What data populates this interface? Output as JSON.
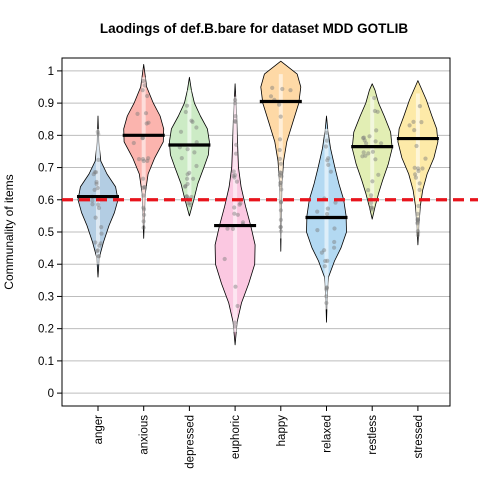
{
  "chart_data": {
    "type": "violin",
    "title": "Laodings of def.B.bare for dataset MDD GOTLIB",
    "xlabel": "",
    "ylabel": "Communality of items",
    "ylim": [
      -0.04,
      1.04
    ],
    "yticks": [
      0,
      0.1,
      0.2,
      0.3,
      0.4,
      0.5,
      0.6,
      0.7,
      0.8,
      0.9,
      1
    ],
    "ytick_labels": [
      "0",
      "0.1",
      "0.2",
      "0.3",
      "0.4",
      "0.5",
      "0.6",
      "0.7",
      "0.8",
      "0.9",
      "1"
    ],
    "grid": "horizontal",
    "reference_line": {
      "y": 0.6,
      "color": "#e8141c",
      "style": "dashed"
    },
    "categories": [
      "anger",
      "anxious",
      "depressed",
      "euphoric",
      "happy",
      "relaxed",
      "restless",
      "stressed"
    ],
    "series": [
      {
        "name": "anger",
        "fill": "#b3cde3",
        "mean": 0.61,
        "min": 0.36,
        "max": 0.86,
        "profile": [
          [
            0.36,
            0
          ],
          [
            0.42,
            0.06
          ],
          [
            0.47,
            0.28
          ],
          [
            0.52,
            0.55
          ],
          [
            0.56,
            0.82
          ],
          [
            0.6,
            1.0
          ],
          [
            0.64,
            0.88
          ],
          [
            0.68,
            0.45
          ],
          [
            0.72,
            0.14
          ],
          [
            0.78,
            0.04
          ],
          [
            0.86,
            0
          ]
        ]
      },
      {
        "name": "anxious",
        "fill": "#fbb4ae",
        "mean": 0.8,
        "min": 0.48,
        "max": 1.02,
        "profile": [
          [
            0.48,
            0
          ],
          [
            0.55,
            0.04
          ],
          [
            0.62,
            0.08
          ],
          [
            0.68,
            0.22
          ],
          [
            0.73,
            0.55
          ],
          [
            0.78,
            0.98
          ],
          [
            0.82,
            1.0
          ],
          [
            0.86,
            0.82
          ],
          [
            0.9,
            0.48
          ],
          [
            0.95,
            0.15
          ],
          [
            1.02,
            0
          ]
        ]
      },
      {
        "name": "depressed",
        "fill": "#ccebc5",
        "mean": 0.77,
        "min": 0.55,
        "max": 0.98,
        "profile": [
          [
            0.55,
            0
          ],
          [
            0.6,
            0.22
          ],
          [
            0.65,
            0.42
          ],
          [
            0.7,
            0.72
          ],
          [
            0.74,
            0.95
          ],
          [
            0.78,
            1.0
          ],
          [
            0.82,
            0.9
          ],
          [
            0.86,
            0.55
          ],
          [
            0.9,
            0.25
          ],
          [
            0.94,
            0.1
          ],
          [
            0.98,
            0
          ]
        ]
      },
      {
        "name": "euphoric",
        "fill": "#fbc8e1",
        "mean": 0.52,
        "min": 0.15,
        "max": 0.96,
        "profile": [
          [
            0.15,
            0
          ],
          [
            0.22,
            0.1
          ],
          [
            0.28,
            0.32
          ],
          [
            0.34,
            0.68
          ],
          [
            0.4,
            0.98
          ],
          [
            0.46,
            1.0
          ],
          [
            0.52,
            0.78
          ],
          [
            0.58,
            0.52
          ],
          [
            0.64,
            0.3
          ],
          [
            0.7,
            0.17
          ],
          [
            0.78,
            0.12
          ],
          [
            0.86,
            0.08
          ],
          [
            0.96,
            0
          ]
        ]
      },
      {
        "name": "happy",
        "fill": "#fed9a6",
        "mean": 0.905,
        "min": 0.44,
        "max": 1.03,
        "profile": [
          [
            0.44,
            0
          ],
          [
            0.55,
            0.03
          ],
          [
            0.65,
            0.06
          ],
          [
            0.72,
            0.14
          ],
          [
            0.78,
            0.3
          ],
          [
            0.84,
            0.6
          ],
          [
            0.9,
            0.9
          ],
          [
            0.95,
            1.0
          ],
          [
            0.99,
            0.82
          ],
          [
            1.03,
            0
          ]
        ]
      },
      {
        "name": "relaxed",
        "fill": "#b3d9f2",
        "mean": 0.545,
        "min": 0.22,
        "max": 0.86,
        "profile": [
          [
            0.22,
            0
          ],
          [
            0.3,
            0.04
          ],
          [
            0.36,
            0.1
          ],
          [
            0.41,
            0.4
          ],
          [
            0.45,
            0.72
          ],
          [
            0.5,
            1.0
          ],
          [
            0.55,
            0.98
          ],
          [
            0.6,
            0.86
          ],
          [
            0.65,
            0.62
          ],
          [
            0.7,
            0.42
          ],
          [
            0.76,
            0.2
          ],
          [
            0.82,
            0.06
          ],
          [
            0.86,
            0
          ]
        ]
      },
      {
        "name": "restless",
        "fill": "#e2eeb4",
        "mean": 0.765,
        "min": 0.54,
        "max": 0.96,
        "profile": [
          [
            0.54,
            0
          ],
          [
            0.58,
            0.15
          ],
          [
            0.62,
            0.32
          ],
          [
            0.66,
            0.52
          ],
          [
            0.71,
            0.8
          ],
          [
            0.76,
            1.0
          ],
          [
            0.81,
            0.92
          ],
          [
            0.86,
            0.6
          ],
          [
            0.9,
            0.32
          ],
          [
            0.94,
            0.14
          ],
          [
            0.96,
            0
          ]
        ]
      },
      {
        "name": "stressed",
        "fill": "#fdeaa8",
        "mean": 0.79,
        "min": 0.46,
        "max": 0.97,
        "profile": [
          [
            0.46,
            0
          ],
          [
            0.52,
            0.05
          ],
          [
            0.58,
            0.12
          ],
          [
            0.63,
            0.24
          ],
          [
            0.68,
            0.46
          ],
          [
            0.73,
            0.8
          ],
          [
            0.78,
            1.0
          ],
          [
            0.82,
            0.94
          ],
          [
            0.86,
            0.7
          ],
          [
            0.91,
            0.42
          ],
          [
            0.97,
            0
          ]
        ]
      }
    ]
  }
}
